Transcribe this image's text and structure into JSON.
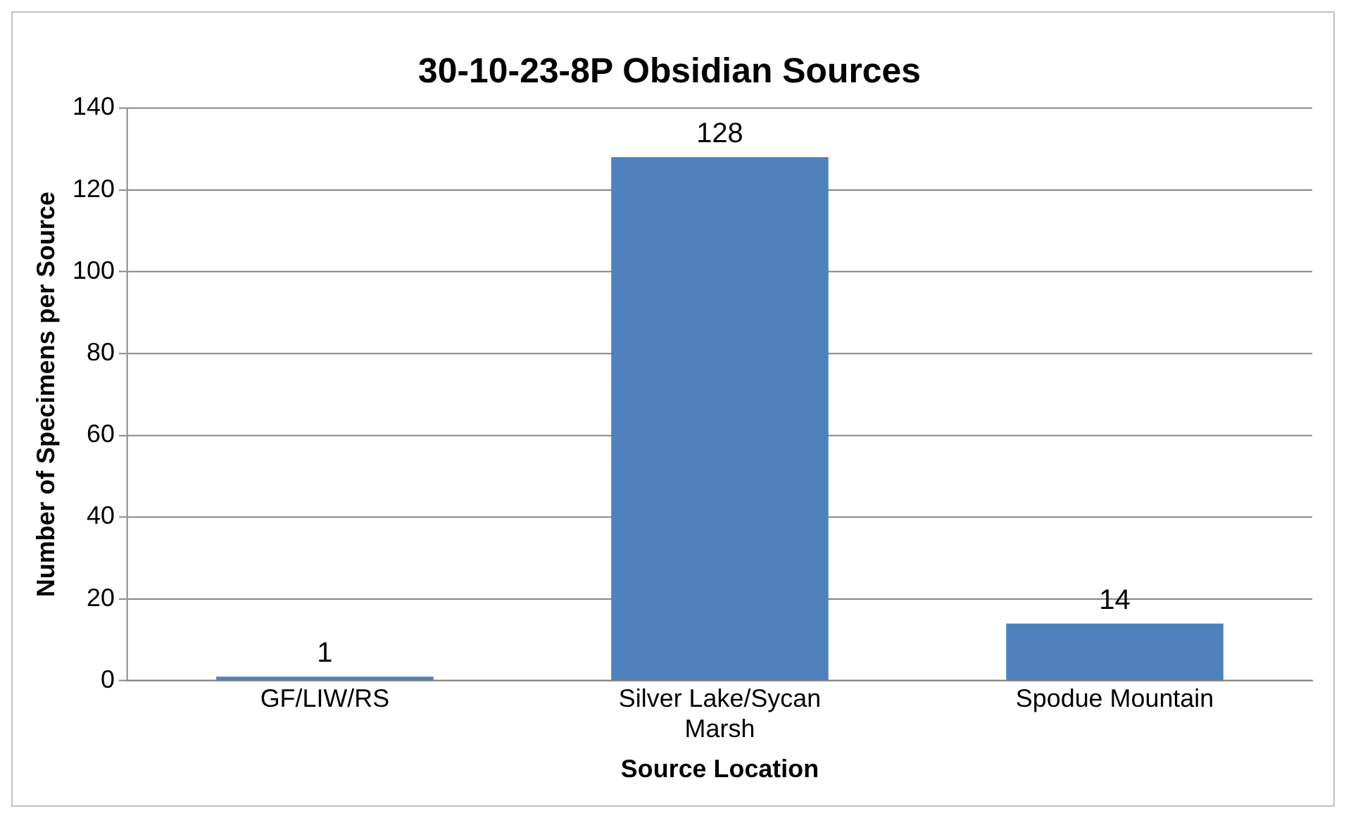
{
  "chart_data": {
    "type": "bar",
    "title": "30-10-23-8P Obsidian Sources",
    "xlabel": "Source Location",
    "ylabel": "Number of Specimens per Source",
    "categories": [
      "GF/LIW/RS",
      "Silver Lake/Sycan Marsh",
      "Spodue Mountain"
    ],
    "values": [
      1,
      128,
      14
    ],
    "color": "#4f81bd",
    "ylim": [
      0,
      140
    ],
    "yticks": [
      0,
      20,
      40,
      60,
      80,
      100,
      120,
      140
    ],
    "grid": "y",
    "data_labels": true,
    "legend": false
  }
}
